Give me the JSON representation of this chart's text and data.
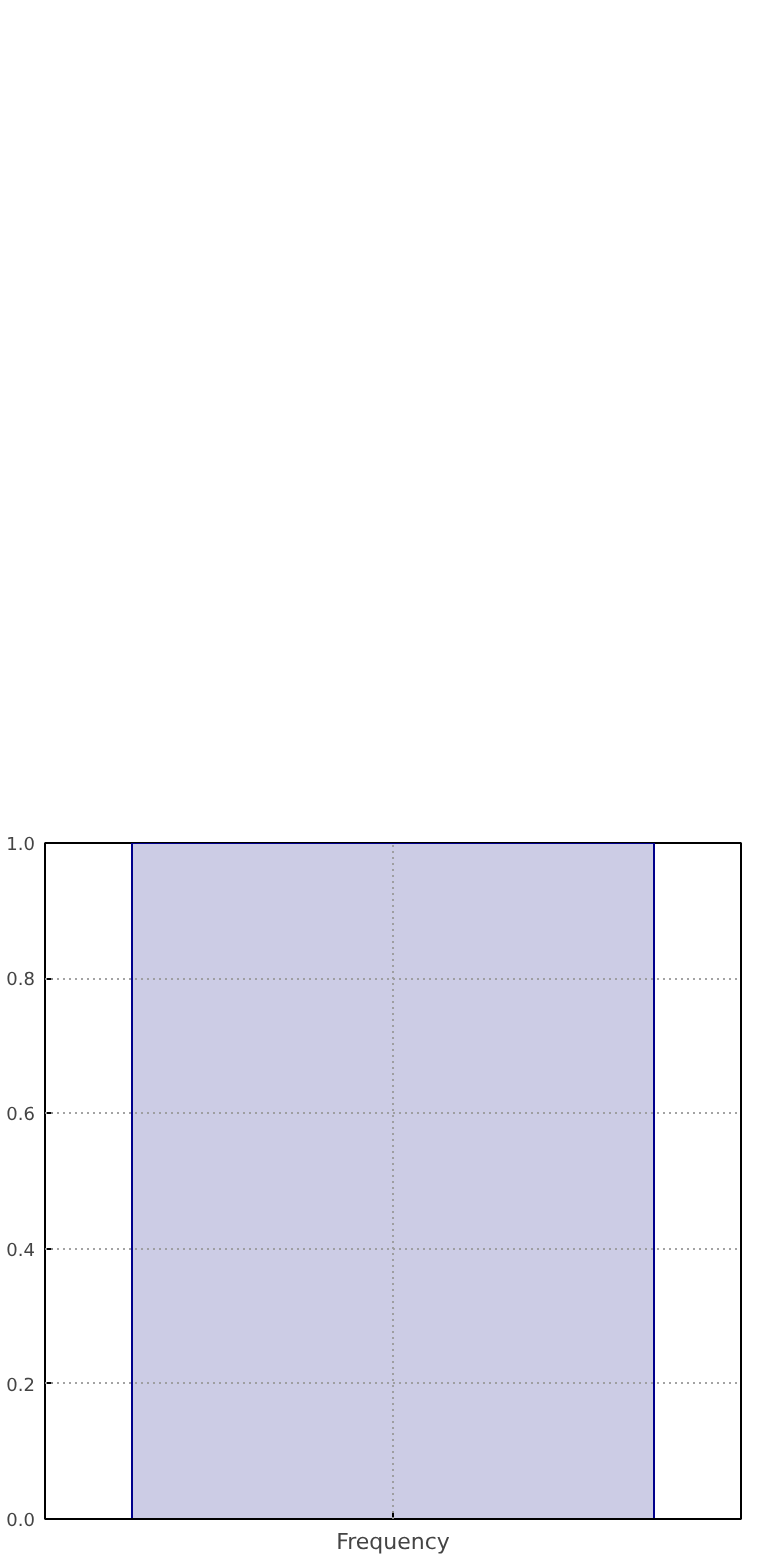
{
  "chart_data": {
    "type": "bar",
    "xlabel": "Frequency",
    "categories": [
      null
    ],
    "values": [
      1.0
    ],
    "color": "#cccce5",
    "ylim": [
      0,
      1
    ],
    "yticks": [
      {
        "value": 0,
        "label": "0.0"
      },
      {
        "value": 0.2,
        "label": "0.2"
      },
      {
        "value": 0.4,
        "label": "0.4"
      },
      {
        "value": 0.6,
        "label": "0.6"
      },
      {
        "value": 0.8,
        "label": "0.8"
      },
      {
        "value": 1,
        "label": "1.0"
      }
    ],
    "grid": true
  }
}
